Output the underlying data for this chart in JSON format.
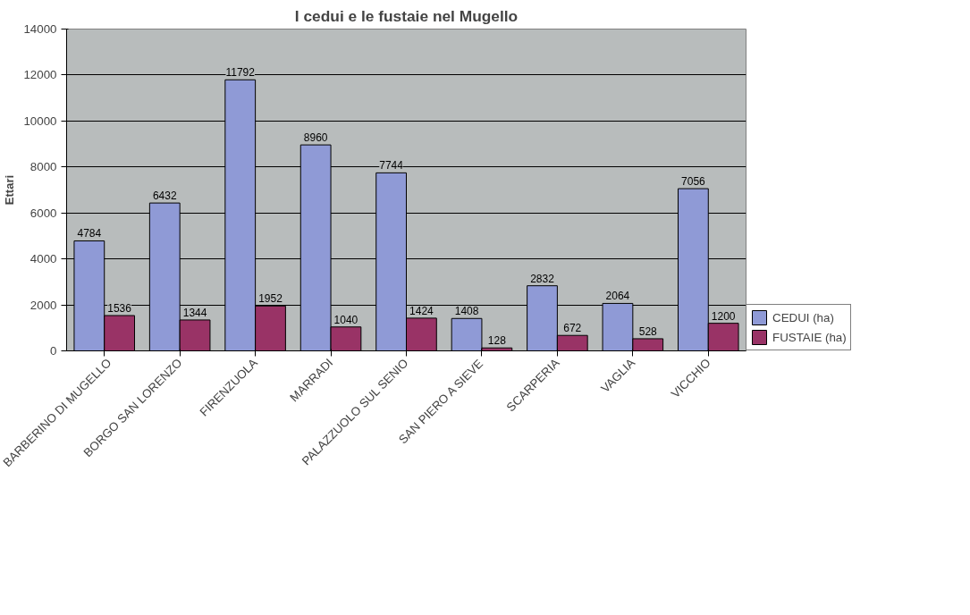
{
  "chart_data": {
    "type": "bar",
    "title": "I cedui e le fustaie nel Mugello",
    "ylabel": "Ettari",
    "categories": [
      "BARBERINO DI MUGELLO",
      "BORGO SAN LORENZO",
      "FIRENZUOLA",
      "MARRADI",
      "PALAZZUOLO SUL SENIO",
      "SAN PIERO A SIEVE",
      "SCARPERIA",
      "VAGLIA",
      "VICCHIO"
    ],
    "series": [
      {
        "name": "CEDUI (ha)",
        "color": "#8f9ad6",
        "values": [
          4784,
          6432,
          11792,
          8960,
          7744,
          1408,
          2832,
          2064,
          7056
        ]
      },
      {
        "name": "FUSTAIE (ha)",
        "color": "#993366",
        "values": [
          1536,
          1344,
          1952,
          1040,
          1424,
          128,
          672,
          528,
          1200
        ]
      }
    ],
    "ylim": [
      0,
      14000
    ],
    "yticks": [
      0,
      2000,
      4000,
      6000,
      8000,
      10000,
      12000,
      14000
    ],
    "grid": "y",
    "legend": "right",
    "data_labels": true
  }
}
